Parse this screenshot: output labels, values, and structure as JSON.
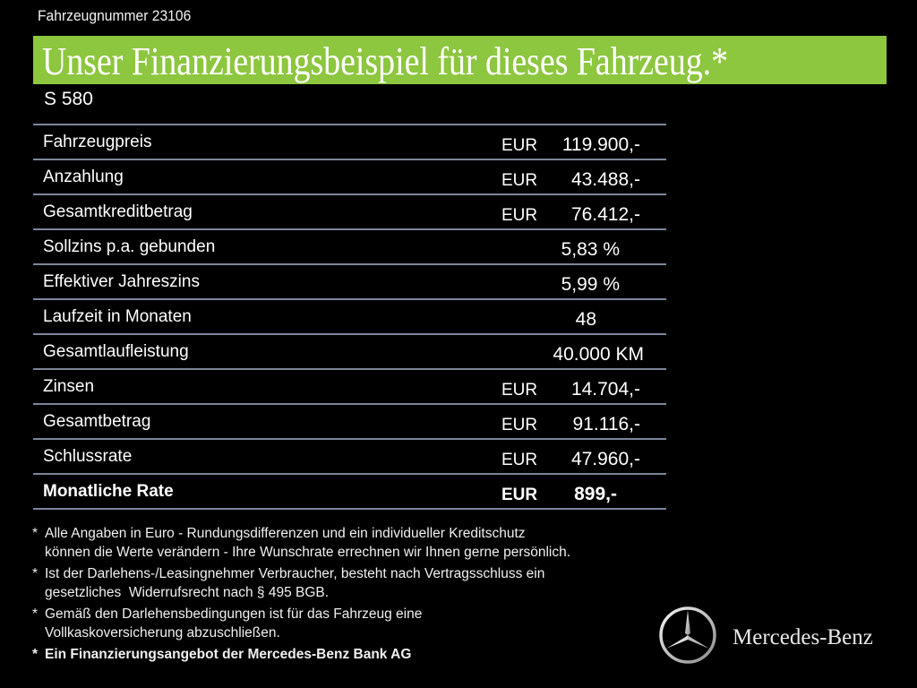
{
  "vehicle_number": "Fahrzeugnummer 23106",
  "headline": "Unser Finanzierungsbeispiel für dieses Fahrzeug.*",
  "model": "S 580",
  "colors": {
    "banner": "#8dc63f",
    "background": "#000000",
    "divider": "#7c869a"
  },
  "rows": [
    {
      "label": "Fahrzeugpreis",
      "currency": "EUR",
      "value": "119.900,-"
    },
    {
      "label": "Anzahlung",
      "currency": "EUR",
      "value": "43.488,-"
    },
    {
      "label": "Gesamtkreditbetrag",
      "currency": "EUR",
      "value": "76.412,-"
    },
    {
      "label": "Sollzins p.a. gebunden",
      "value": "5,83 %"
    },
    {
      "label": "Effektiver Jahreszins",
      "value": "5,99 %"
    },
    {
      "label": "Laufzeit in Monaten",
      "value": "48"
    },
    {
      "label": "Gesamtlaufleistung",
      "value": "40.000 KM"
    },
    {
      "label": "Zinsen",
      "currency": "EUR",
      "value": "14.704,-"
    },
    {
      "label": "Gesamtbetrag",
      "currency": "EUR",
      "value": "91.116,-"
    },
    {
      "label": "Schlussrate",
      "currency": "EUR",
      "value": "47.960,-"
    },
    {
      "label": "Monatliche Rate",
      "currency": "EUR",
      "value": "899,-"
    }
  ],
  "notes": [
    {
      "star": "*",
      "line1": "Alle Angaben in Euro - Rundungsdifferenzen und ein individueller Kreditschutz",
      "line2": "können die Werte verändern - Ihre Wunschrate errechnen wir Ihnen gerne persönlich."
    },
    {
      "star": "*",
      "line1": "Ist der Darlehens-/Leasingnehmer Verbraucher, besteht nach Vertragsschluss ein",
      "line2": "gesetzliches  Widerrufsrecht nach § 495 BGB."
    },
    {
      "star": "*",
      "line1": "Gemäß den Darlehensbedingungen ist für das Fahrzeug eine",
      "line2": "Vollkaskoversicherung abzuschließen."
    },
    {
      "star": "*",
      "line1": "Ein Finanzierungsangebot der Mercedes-Benz Bank AG"
    }
  ],
  "brand": {
    "name": "Mercedes-Benz",
    "icon": "three-pointed-star-icon"
  }
}
